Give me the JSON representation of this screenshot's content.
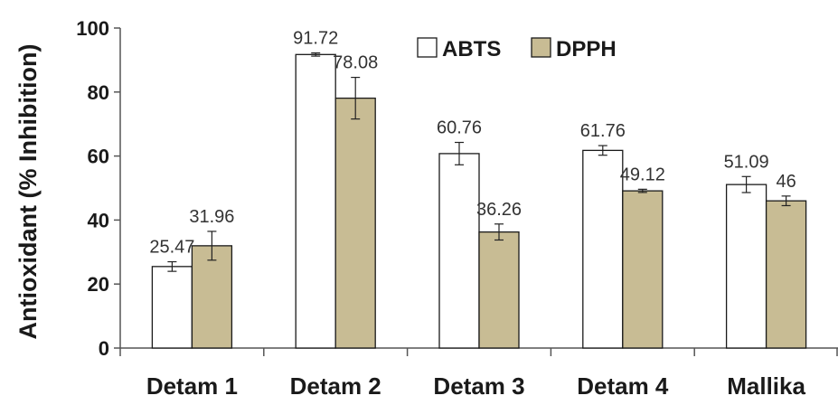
{
  "chart_data": {
    "type": "bar",
    "title": "",
    "xlabel": "",
    "ylabel": "Antioxidant (% Inhibition)",
    "ylim": [
      0,
      100
    ],
    "yticks": [
      0,
      20,
      40,
      60,
      80,
      100
    ],
    "categories": [
      "Detam 1",
      "Detam 2",
      "Detam 3",
      "Detam 4",
      "Mallika"
    ],
    "series": [
      {
        "name": "ABTS",
        "color": "#ffffff",
        "values": [
          25.47,
          91.72,
          60.76,
          61.76,
          51.09
        ],
        "errors": [
          1.5,
          0.5,
          3.5,
          1.5,
          2.5
        ]
      },
      {
        "name": "DPPH",
        "color": "#c8bc94",
        "values": [
          31.96,
          78.08,
          36.26,
          49.12,
          46
        ],
        "errors": [
          4.5,
          6.5,
          2.5,
          0.5,
          1.5
        ]
      }
    ],
    "data_labels": [
      [
        "25.47",
        "91.72",
        "60.76",
        "61.76",
        "51.09"
      ],
      [
        "31.96",
        "78.08",
        "36.26",
        "49.12",
        "46"
      ]
    ],
    "legend_position": "top-right",
    "grid": false
  }
}
